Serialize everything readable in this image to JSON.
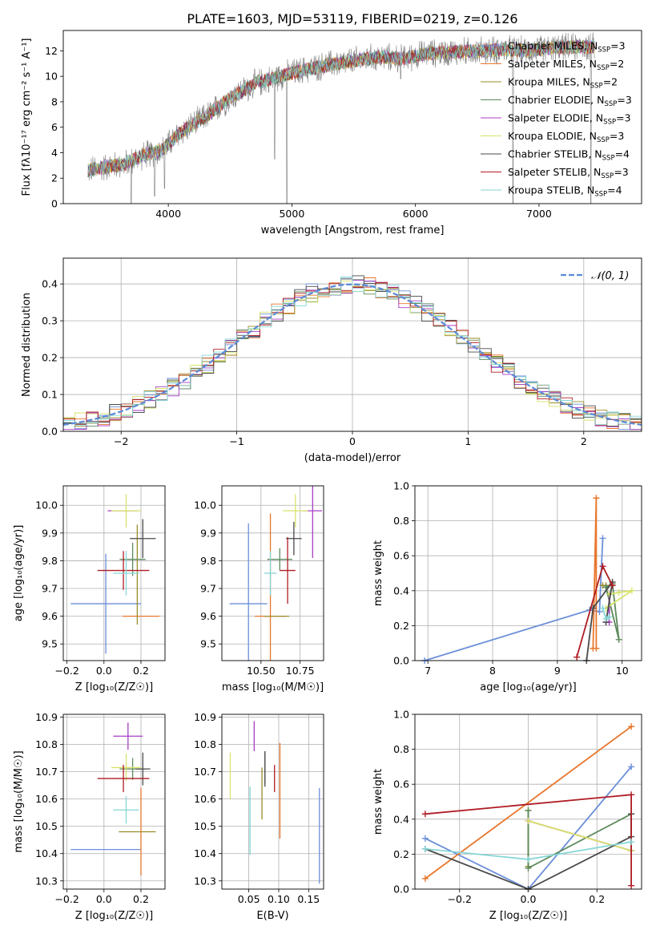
{
  "figure": {
    "title": "PLATE=1603, MJD=53119, FIBERID=0219, z=0.126"
  },
  "colors": {
    "models": [
      "#6b8fd9",
      "#e8762c",
      "#9a8c2a",
      "#5d8a5d",
      "#a83ec4",
      "#d8e36a",
      "#4a4a4a",
      "#b01c24",
      "#85d6d6"
    ],
    "data": "#808080",
    "normal": "#5b8ad6",
    "grid": "#b0b0b0"
  },
  "models": [
    {
      "name": "Chabrier MILES",
      "nssp": 3
    },
    {
      "name": "Salpeter MILES",
      "nssp": 2
    },
    {
      "name": "Kroupa MILES",
      "nssp": 2
    },
    {
      "name": "Chabrier ELODIE",
      "nssp": 3
    },
    {
      "name": "Salpeter ELODIE",
      "nssp": 3
    },
    {
      "name": "Kroupa ELODIE",
      "nssp": 3
    },
    {
      "name": "Chabrier STELIB",
      "nssp": 4
    },
    {
      "name": "Salpeter STELIB",
      "nssp": 3
    },
    {
      "name": "Kroupa STELIB",
      "nssp": 4
    }
  ],
  "chart_data": [
    {
      "id": "spectrum",
      "type": "line",
      "xlabel": "wavelength [Angstrom, rest frame]",
      "ylabel": "Flux [fλ10⁻¹⁷ erg cm⁻² s⁻¹ A⁻¹]",
      "xlim": [
        3150,
        7830
      ],
      "ylim": [
        0,
        13.6
      ],
      "xticks": [
        4000,
        5000,
        6000,
        7000
      ],
      "yticks": [
        0,
        2,
        4,
        6,
        8,
        10,
        12
      ],
      "legend": "right",
      "continuum": {
        "x": [
          3350,
          3500,
          3650,
          3800,
          3950,
          4100,
          4300,
          4500,
          4700,
          4900,
          5100,
          5300,
          5500,
          5700,
          5900,
          6100,
          6300,
          6500,
          6700,
          6900,
          7100,
          7300,
          7450
        ],
        "y": [
          2.6,
          2.9,
          3.1,
          3.8,
          4.2,
          5.6,
          6.8,
          8.3,
          9.4,
          10.0,
          10.5,
          10.9,
          11.2,
          11.5,
          11.4,
          11.8,
          11.9,
          12.0,
          12.1,
          12.0,
          12.2,
          12.3,
          12.3
        ]
      },
      "data_range": [
        3350,
        7450
      ],
      "dips": [
        {
          "x": 3700,
          "y": 0.0
        },
        {
          "x": 3890,
          "y": 0.6
        },
        {
          "x": 3970,
          "y": 1.2
        },
        {
          "x": 4860,
          "y": 3.5
        },
        {
          "x": 4960,
          "y": 0.0
        },
        {
          "x": 5880,
          "y": 9.8
        },
        {
          "x": 6790,
          "y": 0.0
        },
        {
          "x": 7420,
          "y": 0.0
        }
      ]
    },
    {
      "id": "residuals",
      "type": "bar",
      "xlabel": "(data-model)/error",
      "ylabel": "Normed distribution",
      "xlim": [
        -2.5,
        2.5
      ],
      "ylim": [
        0,
        0.47
      ],
      "xticks": [
        -2,
        -1,
        0,
        1,
        2
      ],
      "yticks": [
        0.0,
        0.1,
        0.2,
        0.3,
        0.4
      ],
      "grid": true,
      "legend": "top-right",
      "normal_label": "𝒩(0, 1)"
    },
    {
      "id": "age-vs-Z",
      "type": "scatter",
      "xlabel": "Z [log₁₀(Z/Z☉)]",
      "ylabel": "age  [log₁₀(age/yr)]",
      "xlim": [
        -0.22,
        0.33
      ],
      "ylim": [
        9.44,
        10.07
      ],
      "xticks": [
        -0.2,
        0.0,
        0.2
      ],
      "yticks": [
        9.5,
        9.6,
        9.7,
        9.8,
        9.9,
        10.0
      ],
      "grid": true,
      "points": [
        {
          "x": 0.01,
          "xerr": 0.19,
          "y": 9.645,
          "yerr": 0.18
        },
        {
          "x": 0.2,
          "xerr": 0.1,
          "y": 9.6,
          "yerr": 0.0
        },
        {
          "x": 0.18,
          "xerr": 0.0,
          "y": 9.75,
          "yerr": 0.18
        },
        {
          "x": 0.155,
          "xerr": 0.07,
          "y": 9.805,
          "yerr": 0.06
        },
        {
          "x": 0.1,
          "xerr": 0.08,
          "y": 9.98,
          "yerr": 0.0
        },
        {
          "x": 0.12,
          "xerr": 0.08,
          "y": 9.98,
          "yerr": 0.06
        },
        {
          "x": 0.21,
          "xerr": 0.07,
          "y": 9.88,
          "yerr": 0.07
        },
        {
          "x": 0.105,
          "xerr": 0.14,
          "y": 9.765,
          "yerr": 0.07
        },
        {
          "x": 0.12,
          "xerr": 0.07,
          "y": 9.755,
          "yerr": 0.08
        }
      ]
    },
    {
      "id": "age-vs-mass",
      "type": "scatter",
      "xlabel": "mass [log₁₀(M/M☉)]",
      "ylabel": "",
      "xlim": [
        10.25,
        10.9
      ],
      "ylim": [
        9.44,
        10.07
      ],
      "xticks": [
        10.5,
        10.75
      ],
      "yticks": [
        9.5,
        9.6,
        9.7,
        9.8,
        9.9,
        10.0
      ],
      "grid": true,
      "points": [
        {
          "x": 10.42,
          "xerr": 0.12,
          "y": 9.645,
          "yerr": 0.29
        },
        {
          "x": 10.56,
          "xerr": 0.1,
          "y": 9.6,
          "yerr": 0.37
        },
        {
          "x": 10.6,
          "xerr": 0.08,
          "y": 9.6,
          "yerr": 0.0
        },
        {
          "x": 10.62,
          "xerr": 0.08,
          "y": 9.805,
          "yerr": 0.04
        },
        {
          "x": 10.83,
          "xerr": 0.06,
          "y": 9.98,
          "yerr": 0.17
        },
        {
          "x": 10.72,
          "xerr": 0.08,
          "y": 9.98,
          "yerr": 0.06
        },
        {
          "x": 10.71,
          "xerr": 0.05,
          "y": 9.88,
          "yerr": 0.06
        },
        {
          "x": 10.67,
          "xerr": 0.05,
          "y": 9.765,
          "yerr": 0.12
        },
        {
          "x": 10.56,
          "xerr": 0.04,
          "y": 9.755,
          "yerr": 0.08
        }
      ]
    },
    {
      "id": "massweight-vs-age",
      "type": "line",
      "xlabel": "age  [log₁₀(age/yr)]",
      "ylabel": "mass weight",
      "xlim": [
        6.8,
        10.3
      ],
      "ylim": [
        0.0,
        1.0
      ],
      "xticks": [
        7,
        8,
        9,
        10
      ],
      "yticks": [
        0.0,
        0.2,
        0.4,
        0.6,
        0.8,
        1.0
      ],
      "grid": true,
      "series": [
        {
          "x": [
            6.95,
            9.5,
            9.65,
            9.7
          ],
          "y": [
            0.0,
            0.29,
            0.28,
            0.7
          ]
        },
        {
          "x": [
            9.55,
            9.6,
            9.6
          ],
          "y": [
            0.07,
            0.93,
            0.07
          ]
        },
        {
          "x": [
            9.7,
            9.75
          ],
          "y": [
            0.43,
            0.43
          ]
        },
        {
          "x": [
            9.75,
            9.85,
            9.95,
            9.75
          ],
          "y": [
            0.42,
            0.44,
            0.12,
            0.42
          ]
        },
        {
          "x": [
            9.75,
            9.8,
            9.8
          ],
          "y": [
            0.22,
            0.22,
            0.38
          ]
        },
        {
          "x": [
            9.8,
            9.95,
            10.15,
            9.75
          ],
          "y": [
            0.38,
            0.39,
            0.4,
            0.3
          ]
        },
        {
          "x": [
            9.45,
            9.55,
            9.85,
            9.75
          ],
          "y": [
            0.0,
            0.3,
            0.45,
            0.22
          ]
        },
        {
          "x": [
            9.3,
            9.7,
            9.85
          ],
          "y": [
            0.02,
            0.54,
            0.43
          ]
        },
        {
          "x": [
            9.7,
            9.75,
            9.8
          ],
          "y": [
            0.3,
            0.24,
            0.25
          ]
        }
      ]
    },
    {
      "id": "mass-vs-Z",
      "type": "scatter",
      "xlabel": "Z [log₁₀(Z/Z☉)]",
      "ylabel": "mass [log₁₀(M/M☉)]",
      "xlim": [
        -0.22,
        0.33
      ],
      "ylim": [
        10.27,
        10.91
      ],
      "xticks": [
        -0.2,
        0.0,
        0.2
      ],
      "yticks": [
        10.3,
        10.4,
        10.5,
        10.6,
        10.7,
        10.8,
        10.9
      ],
      "grid": true,
      "points": [
        {
          "x": 0.01,
          "xerr": 0.19,
          "y": 10.415,
          "yerr": 0.0
        },
        {
          "x": 0.2,
          "xerr": 0.0,
          "y": 10.48,
          "yerr": 0.16
        },
        {
          "x": 0.18,
          "xerr": 0.1,
          "y": 10.48,
          "yerr": 0.0
        },
        {
          "x": 0.155,
          "xerr": 0.07,
          "y": 10.71,
          "yerr": 0.04
        },
        {
          "x": 0.13,
          "xerr": 0.08,
          "y": 10.83,
          "yerr": 0.05
        },
        {
          "x": 0.12,
          "xerr": 0.08,
          "y": 10.715,
          "yerr": 0.05
        },
        {
          "x": 0.21,
          "xerr": 0.04,
          "y": 10.71,
          "yerr": 0.06
        },
        {
          "x": 0.105,
          "xerr": 0.14,
          "y": 10.675,
          "yerr": 0.05
        },
        {
          "x": 0.12,
          "xerr": 0.07,
          "y": 10.56,
          "yerr": 0.05
        }
      ]
    },
    {
      "id": "mass-vs-ebv",
      "type": "scatter",
      "xlabel": "E(B-V)",
      "ylabel": "",
      "xlim": [
        0.005,
        0.175
      ],
      "ylim": [
        10.27,
        10.91
      ],
      "xticks": [
        0.05,
        0.1,
        0.15
      ],
      "yticks": [
        10.3,
        10.4,
        10.5,
        10.6,
        10.7,
        10.8,
        10.9
      ],
      "grid": true,
      "points": [
        {
          "x": 0.168,
          "y": 10.465,
          "yerr": 0.175
        },
        {
          "x": 0.102,
          "y": 10.63,
          "yerr": 0.175
        },
        {
          "x": 0.072,
          "y": 10.62,
          "yerr": 0.095
        },
        {
          "x": 0.077,
          "y": 10.715,
          "yerr": 0.06
        },
        {
          "x": 0.059,
          "y": 10.83,
          "yerr": 0.055
        },
        {
          "x": 0.019,
          "y": 10.685,
          "yerr": 0.085
        },
        {
          "x": 0.077,
          "y": 10.71,
          "yerr": 0.065
        },
        {
          "x": 0.093,
          "y": 10.675,
          "yerr": 0.05
        },
        {
          "x": 0.052,
          "y": 10.52,
          "yerr": 0.125
        }
      ]
    },
    {
      "id": "massweight-vs-Z",
      "type": "line",
      "xlabel": "Z [log₁₀(Z/Z☉)]",
      "ylabel": "mass weight",
      "xlim": [
        -0.33,
        0.33
      ],
      "ylim": [
        0.0,
        1.0
      ],
      "xticks": [
        -0.2,
        0.0,
        0.2
      ],
      "yticks": [
        0.0,
        0.2,
        0.4,
        0.6,
        0.8,
        1.0
      ],
      "grid": true,
      "series": [
        {
          "x": [
            -0.3,
            0.0,
            0.3
          ],
          "y": [
            0.29,
            0.0,
            0.7
          ]
        },
        {
          "x": [
            -0.3,
            0.3
          ],
          "y": [
            0.06,
            0.93
          ]
        },
        {
          "x": [
            0.0,
            0.0
          ],
          "y": [
            0.13,
            0.45
          ]
        },
        {
          "x": [
            0.0,
            0.0,
            0.3,
            0.3
          ],
          "y": [
            0.45,
            0.12,
            0.43,
            0.22
          ]
        },
        {
          "x": [
            0.0,
            0.3
          ],
          "y": [
            0.39,
            0.22
          ]
        },
        {
          "x": [
            0.0,
            0.3
          ],
          "y": [
            0.39,
            0.22
          ]
        },
        {
          "x": [
            -0.3,
            0.0,
            0.3,
            0.3
          ],
          "y": [
            0.23,
            0.0,
            0.3,
            0.43
          ]
        },
        {
          "x": [
            -0.3,
            0.3,
            0.3
          ],
          "y": [
            0.43,
            0.54,
            0.02
          ]
        },
        {
          "x": [
            -0.3,
            0.0,
            0.3
          ],
          "y": [
            0.23,
            0.17,
            0.27
          ]
        }
      ]
    }
  ]
}
